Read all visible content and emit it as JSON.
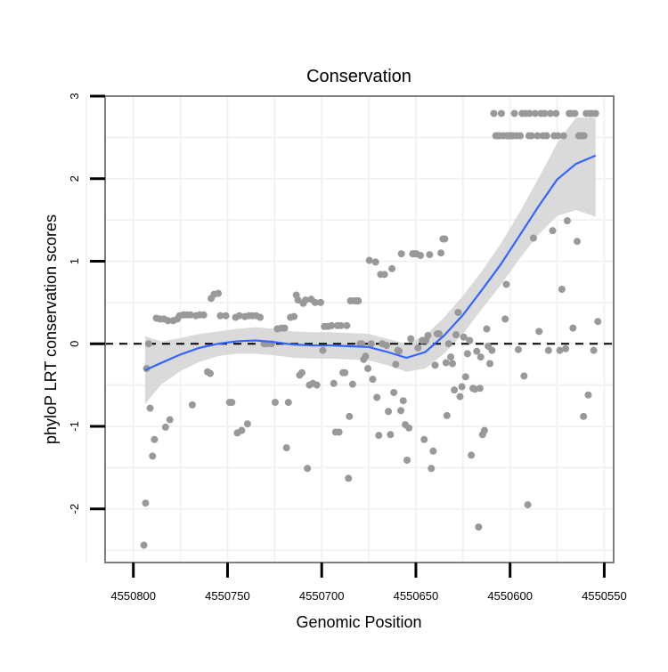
{
  "chart_data": {
    "type": "scatter",
    "title": "Conservation",
    "xlabel": "Genomic Position",
    "ylabel": "phyloP LRT conservation scores",
    "x_reversed": true,
    "xlim": [
      4550545,
      4550815
    ],
    "ylim": [
      -2.65,
      3.0
    ],
    "x_ticks": [
      4550800,
      4550750,
      4550700,
      4550650,
      4550600,
      4550550
    ],
    "x_tick_labels": [
      "4550800",
      "4550750",
      "4550700",
      "4550650",
      "4550600",
      "4550550"
    ],
    "y_ticks": [
      -2,
      -1,
      0,
      1,
      2,
      3
    ],
    "y_tick_labels": [
      "-2",
      "-1",
      "0",
      "1",
      "2",
      "3"
    ],
    "reference_line": {
      "y": 0,
      "style": "dashed"
    },
    "colors": {
      "points": "#999999",
      "smooth": "#3366ff",
      "band": "#d3d3d3",
      "frame": "#7f7f7f",
      "grid": "#f2f2f2"
    },
    "points": [
      [
        4550794.4,
        -2.44
      ],
      [
        4550793.5,
        -1.93
      ],
      [
        4550793.0,
        -0.3
      ],
      [
        4550791.9,
        0.0
      ],
      [
        4550791.1,
        -0.78
      ],
      [
        4550789.8,
        -1.36
      ],
      [
        4550788.8,
        -1.16
      ],
      [
        4550787.8,
        0.31
      ],
      [
        4550785.8,
        0.3
      ],
      [
        4550783.7,
        0.3
      ],
      [
        4550782.9,
        -1.01
      ],
      [
        4550781.6,
        0.28
      ],
      [
        4550780.6,
        -0.92
      ],
      [
        4550778.8,
        0.28
      ],
      [
        4550776.7,
        0.3
      ],
      [
        4550775.5,
        0.34
      ],
      [
        4550773.4,
        0.35
      ],
      [
        4550771.6,
        0.35
      ],
      [
        4550769.7,
        0.35
      ],
      [
        4550768.7,
        -0.74
      ],
      [
        4550766.8,
        0.34
      ],
      [
        4550764.8,
        0.35
      ],
      [
        4550762.7,
        0.35
      ],
      [
        4550760.6,
        -0.34
      ],
      [
        4550759.2,
        -0.36
      ],
      [
        4550758.7,
        0.55
      ],
      [
        4550757.1,
        0.6
      ],
      [
        4550754.9,
        0.61
      ],
      [
        4550753.8,
        0.34
      ],
      [
        4550750.9,
        0.34
      ],
      [
        4550748.9,
        -0.71
      ],
      [
        4550747.7,
        -0.71
      ],
      [
        4550745.7,
        0.32
      ],
      [
        4550744.8,
        -1.08
      ],
      [
        4550743.7,
        0.34
      ],
      [
        4550742.5,
        -1.05
      ],
      [
        4550740.8,
        0.33
      ],
      [
        4550739.4,
        -0.97
      ],
      [
        4550738.6,
        0.34
      ],
      [
        4550736.8,
        0.34
      ],
      [
        4550734.8,
        0.34
      ],
      [
        4550732.7,
        0.32
      ],
      [
        4550730.6,
        0.0
      ],
      [
        4550728.7,
        0.0
      ],
      [
        4550726.6,
        0.0
      ],
      [
        4550724.7,
        -0.71
      ],
      [
        4550723.6,
        0.18
      ],
      [
        4550721.4,
        0.19
      ],
      [
        4550719.7,
        0.19
      ],
      [
        4550718.7,
        -1.26
      ],
      [
        4550717.7,
        -0.71
      ],
      [
        4550716.6,
        0.32
      ],
      [
        4550714.7,
        0.33
      ],
      [
        4550713.5,
        0.59
      ],
      [
        4550712.6,
        0.53
      ],
      [
        4550711.7,
        -0.38
      ],
      [
        4550710.5,
        -0.35
      ],
      [
        4550709.8,
        0.49
      ],
      [
        4550708.6,
        0.53
      ],
      [
        4550707.6,
        -1.51
      ],
      [
        4550706.5,
        -0.5
      ],
      [
        4550705.6,
        0.54
      ],
      [
        4550704.7,
        -0.48
      ],
      [
        4550703.5,
        0.5
      ],
      [
        4550702.6,
        -0.5
      ],
      [
        4550700.6,
        0.5
      ],
      [
        4550699.4,
        -0.08
      ],
      [
        4550698.6,
        0.21
      ],
      [
        4550696.7,
        0.21
      ],
      [
        4550694.7,
        0.22
      ],
      [
        4550693.6,
        -0.48
      ],
      [
        4550692.6,
        -1.07
      ],
      [
        4550691.6,
        0.22
      ],
      [
        4550690.8,
        -1.07
      ],
      [
        4550689.8,
        0.22
      ],
      [
        4550688.7,
        -0.35
      ],
      [
        4550687.7,
        -0.35
      ],
      [
        4550686.7,
        0.22
      ],
      [
        4550685.8,
        -1.63
      ],
      [
        4550685.3,
        -0.88
      ],
      [
        4550684.7,
        0.52
      ],
      [
        4550683.6,
        -0.49
      ],
      [
        4550682.7,
        0.52
      ],
      [
        4550681.6,
        0.52
      ],
      [
        4550680.6,
        0.52
      ],
      [
        4550679.6,
        0.0
      ],
      [
        4550678.7,
        0.0
      ],
      [
        4550677.7,
        -0.19
      ],
      [
        4550676.7,
        -0.15
      ],
      [
        4550675.5,
        -0.3
      ],
      [
        4550674.7,
        1.01
      ],
      [
        4550673.7,
        0.0
      ],
      [
        4550672.9,
        -0.43
      ],
      [
        4550671.4,
        0.99
      ],
      [
        4550670.7,
        -0.65
      ],
      [
        4550669.7,
        -1.11
      ],
      [
        4550668.7,
        0.84
      ],
      [
        4550667.8,
        0.0
      ],
      [
        4550666.7,
        0.84
      ],
      [
        4550665.6,
        -0.02
      ],
      [
        4550664.6,
        -0.82
      ],
      [
        4550663.5,
        -1.1
      ],
      [
        4550662.7,
        0.91
      ],
      [
        4550661.7,
        -0.59
      ],
      [
        4550660.7,
        -0.25
      ],
      [
        4550659.6,
        -0.08
      ],
      [
        4550658.9,
        -0.09
      ],
      [
        4550658.0,
        -0.81
      ],
      [
        4550657.7,
        1.09
      ],
      [
        4550656.7,
        -0.69
      ],
      [
        4550655.6,
        -0.98
      ],
      [
        4550654.7,
        -1.41
      ],
      [
        4550653.7,
        -1.02
      ],
      [
        4550652.7,
        0.06
      ],
      [
        4550651.7,
        1.09
      ],
      [
        4550650.9,
        1.09
      ],
      [
        4550649.7,
        1.09
      ],
      [
        4550648.9,
        -0.05
      ],
      [
        4550647.6,
        1.07
      ],
      [
        4550646.6,
        0.04
      ],
      [
        4550645.6,
        -1.16
      ],
      [
        4550644.7,
        0.04
      ],
      [
        4550643.6,
        0.1
      ],
      [
        4550642.7,
        1.08
      ],
      [
        4550641.8,
        -1.51
      ],
      [
        4550640.8,
        -1.3
      ],
      [
        4550639.8,
        -0.26
      ],
      [
        4550638.7,
        0.12
      ],
      [
        4550637.7,
        0.12
      ],
      [
        4550636.7,
        1.1
      ],
      [
        4550635.6,
        1.27
      ],
      [
        4550634.7,
        1.27
      ],
      [
        4550634.0,
        -0.23
      ],
      [
        4550633.5,
        -0.87
      ],
      [
        4550632.6,
        0.0
      ],
      [
        4550631.5,
        -0.16
      ],
      [
        4550630.6,
        -0.24
      ],
      [
        4550629.6,
        -0.56
      ],
      [
        4550628.7,
        0.11
      ],
      [
        4550627.6,
        0.38
      ],
      [
        4550626.6,
        -0.64
      ],
      [
        4550625.6,
        -0.52
      ],
      [
        4550624.6,
        0.08
      ],
      [
        4550623.6,
        -0.4
      ],
      [
        4550622.6,
        -0.12
      ],
      [
        4550621.5,
        0.04
      ],
      [
        4550620.6,
        -1.35
      ],
      [
        4550619.7,
        -0.54
      ],
      [
        4550618.7,
        -0.55
      ],
      [
        4550617.7,
        -0.09
      ],
      [
        4550616.7,
        -2.22
      ],
      [
        4550616.0,
        -0.54
      ],
      [
        4550615.6,
        -0.16
      ],
      [
        4550614.6,
        -1.1
      ],
      [
        4550613.6,
        -1.05
      ],
      [
        4550612.4,
        0.18
      ],
      [
        4550611.6,
        -0.03
      ],
      [
        4550610.7,
        -0.24
      ],
      [
        4550609.6,
        -0.08
      ],
      [
        4550608.6,
        2.79
      ],
      [
        4550607.6,
        2.52
      ],
      [
        4550606.6,
        2.52
      ],
      [
        4550605.6,
        2.52
      ],
      [
        4550604.6,
        2.79
      ],
      [
        4550603.7,
        2.52
      ],
      [
        4550602.6,
        0.3
      ],
      [
        4550602.0,
        0.72
      ],
      [
        4550601.6,
        2.52
      ],
      [
        4550600.6,
        2.52
      ],
      [
        4550599.6,
        2.52
      ],
      [
        4550598.6,
        2.52
      ],
      [
        4550597.7,
        2.79
      ],
      [
        4550596.6,
        2.52
      ],
      [
        4550595.6,
        -0.07
      ],
      [
        4550594.6,
        2.52
      ],
      [
        4550593.6,
        2.79
      ],
      [
        4550592.6,
        -0.39
      ],
      [
        4550591.6,
        2.79
      ],
      [
        4550590.6,
        -1.95
      ],
      [
        4550590.0,
        2.52
      ],
      [
        4550589.6,
        2.79
      ],
      [
        4550588.6,
        2.52
      ],
      [
        4550587.6,
        1.28
      ],
      [
        4550586.6,
        2.79
      ],
      [
        4550585.5,
        2.52
      ],
      [
        4550584.6,
        0.15
      ],
      [
        4550583.6,
        2.79
      ],
      [
        4550582.6,
        2.52
      ],
      [
        4550581.6,
        2.79
      ],
      [
        4550580.6,
        2.52
      ],
      [
        4550579.6,
        -0.08
      ],
      [
        4550578.6,
        2.79
      ],
      [
        4550577.4,
        1.37
      ],
      [
        4550576.6,
        2.52
      ],
      [
        4550575.6,
        2.79
      ],
      [
        4550574.6,
        2.52
      ],
      [
        4550573.6,
        -0.08
      ],
      [
        4550572.5,
        0.66
      ],
      [
        4550571.6,
        2.52
      ],
      [
        4550570.5,
        -0.06
      ],
      [
        4550569.6,
        1.49
      ],
      [
        4550568.6,
        2.79
      ],
      [
        4550567.6,
        2.79
      ],
      [
        4550566.6,
        0.19
      ],
      [
        4550565.6,
        2.79
      ],
      [
        4550564.4,
        1.24
      ],
      [
        4550563.5,
        2.52
      ],
      [
        4550562.6,
        2.52
      ],
      [
        4550561.6,
        2.52
      ],
      [
        4550561.0,
        -0.88
      ],
      [
        4550560.7,
        2.52
      ],
      [
        4550559.6,
        2.79
      ],
      [
        4550558.5,
        -0.62
      ],
      [
        4550557.6,
        2.79
      ],
      [
        4550556.6,
        2.79
      ],
      [
        4550555.6,
        -0.08
      ],
      [
        4550554.6,
        2.79
      ],
      [
        4550553.4,
        0.27
      ]
    ],
    "smooth_fit": [
      {
        "x": 4550793.8,
        "y": -0.32,
        "lo": -0.73,
        "hi": 0.09
      },
      {
        "x": 4550785,
        "y": -0.23,
        "lo": -0.49,
        "hi": 0.03
      },
      {
        "x": 4550775,
        "y": -0.13,
        "lo": -0.33,
        "hi": 0.07
      },
      {
        "x": 4550765,
        "y": -0.05,
        "lo": -0.22,
        "hi": 0.12
      },
      {
        "x": 4550755,
        "y": 0.0,
        "lo": -0.15,
        "hi": 0.15
      },
      {
        "x": 4550745,
        "y": 0.03,
        "lo": -0.12,
        "hi": 0.18
      },
      {
        "x": 4550735,
        "y": 0.04,
        "lo": -0.12,
        "hi": 0.2
      },
      {
        "x": 4550725,
        "y": 0.02,
        "lo": -0.14,
        "hi": 0.18
      },
      {
        "x": 4550715,
        "y": -0.01,
        "lo": -0.17,
        "hi": 0.15
      },
      {
        "x": 4550705,
        "y": -0.02,
        "lo": -0.18,
        "hi": 0.14
      },
      {
        "x": 4550695,
        "y": -0.02,
        "lo": -0.18,
        "hi": 0.14
      },
      {
        "x": 4550685,
        "y": -0.03,
        "lo": -0.19,
        "hi": 0.13
      },
      {
        "x": 4550675,
        "y": -0.04,
        "lo": -0.2,
        "hi": 0.12
      },
      {
        "x": 4550665,
        "y": -0.1,
        "lo": -0.26,
        "hi": 0.06
      },
      {
        "x": 4550655,
        "y": -0.17,
        "lo": -0.34,
        "hi": 0.0
      },
      {
        "x": 4550645,
        "y": -0.1,
        "lo": -0.3,
        "hi": 0.1
      },
      {
        "x": 4550635,
        "y": 0.1,
        "lo": -0.12,
        "hi": 0.32
      },
      {
        "x": 4550625,
        "y": 0.35,
        "lo": 0.12,
        "hi": 0.58
      },
      {
        "x": 4550615,
        "y": 0.65,
        "lo": 0.42,
        "hi": 0.88
      },
      {
        "x": 4550605,
        "y": 0.96,
        "lo": 0.71,
        "hi": 1.21
      },
      {
        "x": 4550595,
        "y": 1.31,
        "lo": 1.03,
        "hi": 1.59
      },
      {
        "x": 4550585,
        "y": 1.66,
        "lo": 1.32,
        "hi": 2.0
      },
      {
        "x": 4550575,
        "y": 1.99,
        "lo": 1.55,
        "hi": 2.43
      },
      {
        "x": 4550565,
        "y": 2.18,
        "lo": 1.62,
        "hi": 2.74
      },
      {
        "x": 4550554.6,
        "y": 2.28,
        "lo": 1.54,
        "hi": 2.74
      }
    ]
  }
}
